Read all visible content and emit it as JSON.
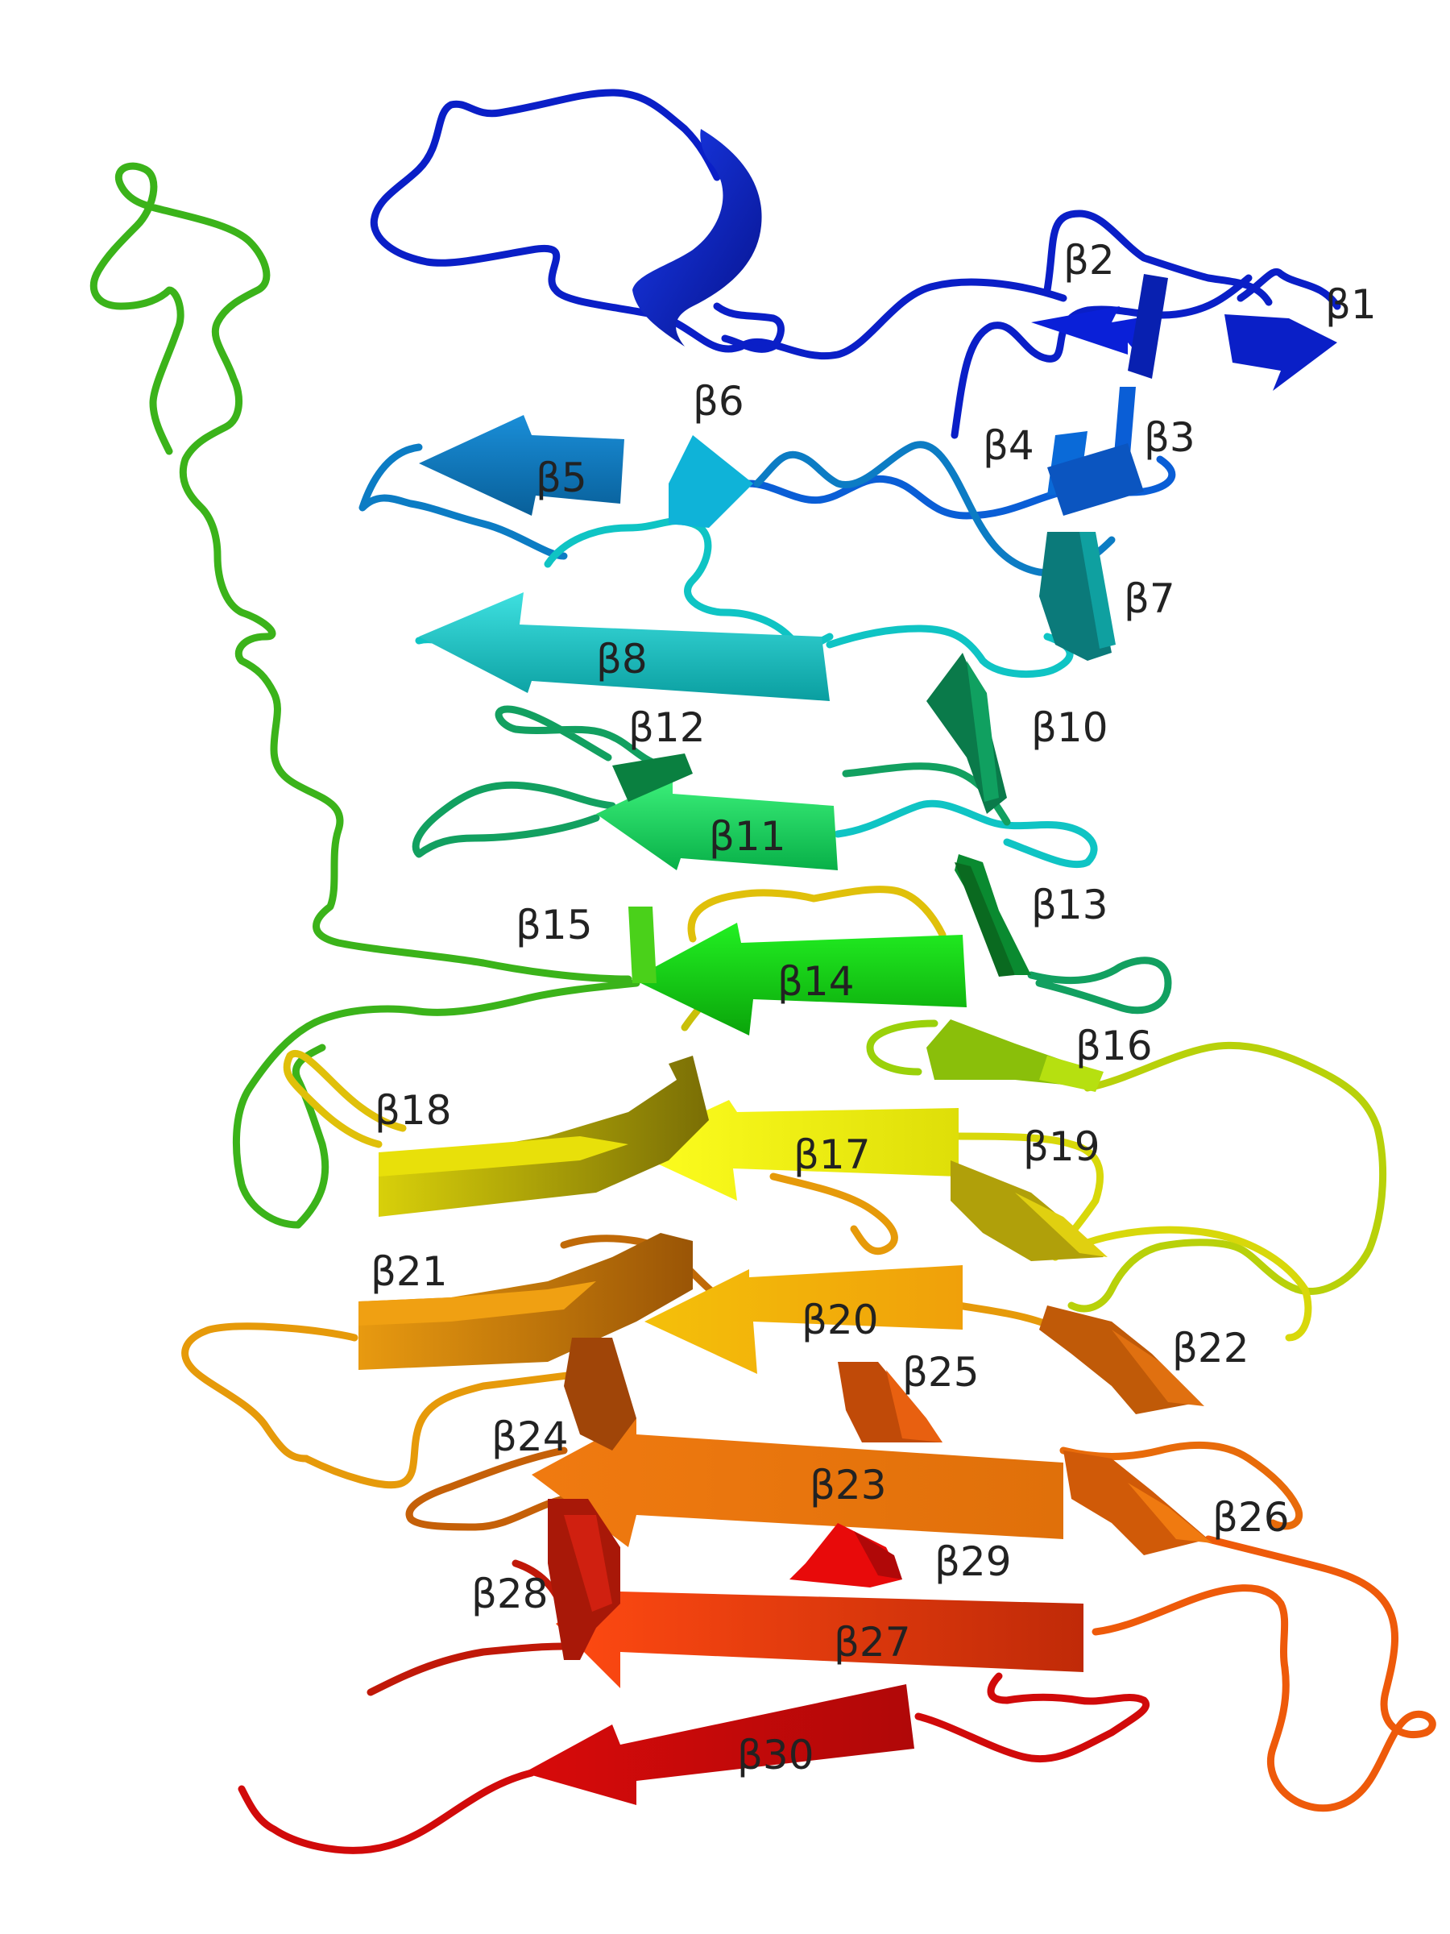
{
  "labels": {
    "b1": "β1",
    "b2": "β2",
    "b3": "β3",
    "b4": "β4",
    "b5": "β5",
    "b6": "β6",
    "b7": "β7",
    "b8": "β8",
    "b10": "β10",
    "b11": "β11",
    "b12": "β12",
    "b13": "β13",
    "b14": "β14",
    "b15": "β15",
    "b16": "β16",
    "b17": "β17",
    "b18": "β18",
    "b19": "β19",
    "b20": "β20",
    "b21": "β21",
    "b22": "β22",
    "b23": "β23",
    "b24": "β24",
    "b25": "β25",
    "b26": "β26",
    "b27": "β27",
    "b28": "β28",
    "b29": "β29",
    "b30": "β30"
  },
  "colors": {
    "blue": "#0a1fc7",
    "midblue": "#0a5ed6",
    "steel": "#0c7cc4",
    "cyan": "#0fc4c4",
    "teal": "#0b7a6a",
    "seagreen": "#12a060",
    "green": "#0dd94a",
    "leaf": "#3bb31a",
    "lime": "#9ad10a",
    "yellow": "#f3f30a",
    "olive": "#c9c00a",
    "amber": "#f0b80a",
    "orange": "#e69a0a",
    "darkorange": "#e86b0a",
    "redorange": "#ff4010",
    "red": "#d10a0a"
  }
}
